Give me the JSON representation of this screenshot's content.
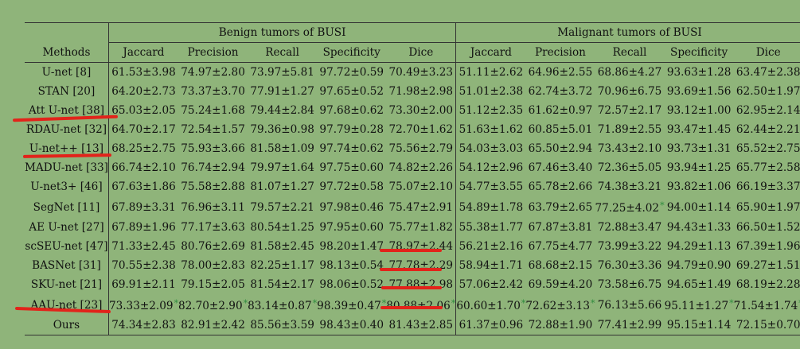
{
  "headers": {
    "methods": "Methods",
    "groups": [
      "Benign tumors of BUSI",
      "Malignant tumors of BUSI"
    ],
    "metrics": [
      "Jaccard",
      "Precision",
      "Recall",
      "Specificity",
      "Dice",
      "Jaccard",
      "Precision",
      "Recall",
      "Specificity",
      "Dice"
    ]
  },
  "rows": [
    {
      "method": "U-net [8]",
      "values": [
        "61.53±3.98",
        "74.97±2.80",
        "73.97±5.81",
        "97.72±0.59",
        "70.49±3.23",
        "51.11±2.62",
        "64.96±2.55",
        "68.86±4.27",
        "93.63±1.28",
        "63.47±2.38"
      ]
    },
    {
      "method": "STAN [20]",
      "values": [
        "64.20±2.73",
        "73.37±3.70",
        "77.91±1.27",
        "97.65±0.52",
        "71.98±2.98",
        "51.01±2.38",
        "62.74±3.72",
        "70.96±6.75",
        "93.69±1.56",
        "62.50±1.97"
      ]
    },
    {
      "method": "Att U-net [38]",
      "values": [
        "65.03±2.05",
        "75.24±1.68",
        "79.44±2.84",
        "97.68±0.62",
        "73.30±2.00",
        "51.12±2.35",
        "61.62±0.97",
        "72.57±2.17",
        "93.12±1.00",
        "62.95±2.14"
      ]
    },
    {
      "method": "RDAU-net [32]",
      "values": [
        "64.70±2.17",
        "72.54±1.57",
        "79.36±0.98",
        "97.79±0.28",
        "72.70±1.62",
        "51.63±1.62",
        "60.85±5.01",
        "71.89±2.55",
        "93.47±1.45",
        "62.44±2.21"
      ]
    },
    {
      "method": "U-net++ [13]",
      "values": [
        "68.25±2.75",
        "75.93±3.66",
        "81.58±1.09",
        "97.74±0.62",
        "75.56±2.79",
        "54.03±3.03",
        "65.50±2.94",
        "73.43±2.10",
        "93.73±1.31",
        "65.52±2.75"
      ]
    },
    {
      "method": "MADU-net [33]",
      "values": [
        "66.74±2.10",
        "76.74±2.94",
        "79.97±1.64",
        "97.75±0.60",
        "74.82±2.26",
        "54.12±2.96",
        "67.46±3.40",
        "72.36±5.05",
        "93.94±1.25",
        "65.77±2.58"
      ]
    },
    {
      "method": "U-net3+ [46]",
      "values": [
        "67.63±1.86",
        "75.58±2.88",
        "81.07±1.27",
        "97.72±0.58",
        "75.07±2.10",
        "54.77±3.55",
        "65.78±2.66",
        "74.38±3.21",
        "93.82±1.06",
        "66.19±3.37"
      ]
    },
    {
      "method": "SegNet [11]",
      "values": [
        "67.89±3.31",
        "76.96±3.11",
        "79.57±2.21",
        "97.98±0.46",
        "75.47±2.91",
        "54.89±1.78",
        "63.79±2.65",
        "77.25±4.02",
        "94.00±1.14",
        "65.90±1.97"
      ],
      "stars": [
        7
      ]
    },
    {
      "method": "AE U-net [27]",
      "values": [
        "67.89±1.96",
        "77.17±3.63",
        "80.54±1.25",
        "97.95±0.60",
        "75.77±1.82",
        "55.38±1.77",
        "67.87±3.81",
        "72.88±3.47",
        "94.43±1.33",
        "66.50±1.52"
      ]
    },
    {
      "method": "scSEU-net [47]",
      "values": [
        "71.33±2.45",
        "80.76±2.69",
        "81.58±2.45",
        "98.20±1.47",
        "78.97±2.44",
        "56.21±2.16",
        "67.75±4.77",
        "73.99±3.22",
        "94.29±1.13",
        "67.39±1.96"
      ]
    },
    {
      "method": "BASNet [31]",
      "values": [
        "70.55±2.38",
        "78.00±2.83",
        "82.25±1.17",
        "98.13±0.54",
        "77.78±2.29",
        "58.94±1.71",
        "68.68±2.15",
        "76.30±3.36",
        "94.79±0.90",
        "69.27±1.51"
      ]
    },
    {
      "method": "SKU-net [21]",
      "values": [
        "69.91±2.11",
        "79.15±2.05",
        "81.54±2.17",
        "98.06±0.52",
        "77.88±2.98",
        "57.06±2.42",
        "69.59±4.20",
        "73.58±6.75",
        "94.65±1.49",
        "68.19±2.28"
      ]
    },
    {
      "method": "AAU-net [23]",
      "values": [
        "73.33±2.09",
        "82.70±2.90",
        "83.14±0.87",
        "98.39±0.47",
        "80.88±2.06",
        "60.60±1.70",
        "72.62±3.13",
        "76.13±5.66",
        "95.11±1.27",
        "71.54±1.74"
      ],
      "stars": [
        0,
        1,
        2,
        3,
        4,
        5,
        6,
        8,
        9
      ]
    },
    {
      "method": "Ours",
      "values": [
        "74.34±2.83",
        "82.91±2.42",
        "85.56±3.59",
        "98.43±0.40",
        "81.43±2.85",
        "61.37±0.96",
        "72.88±1.90",
        "77.41±2.99",
        "95.15±1.14",
        "72.15±0.70"
      ],
      "bold": true
    }
  ],
  "star_symbol": "*",
  "annotation_color": "#e2231a"
}
